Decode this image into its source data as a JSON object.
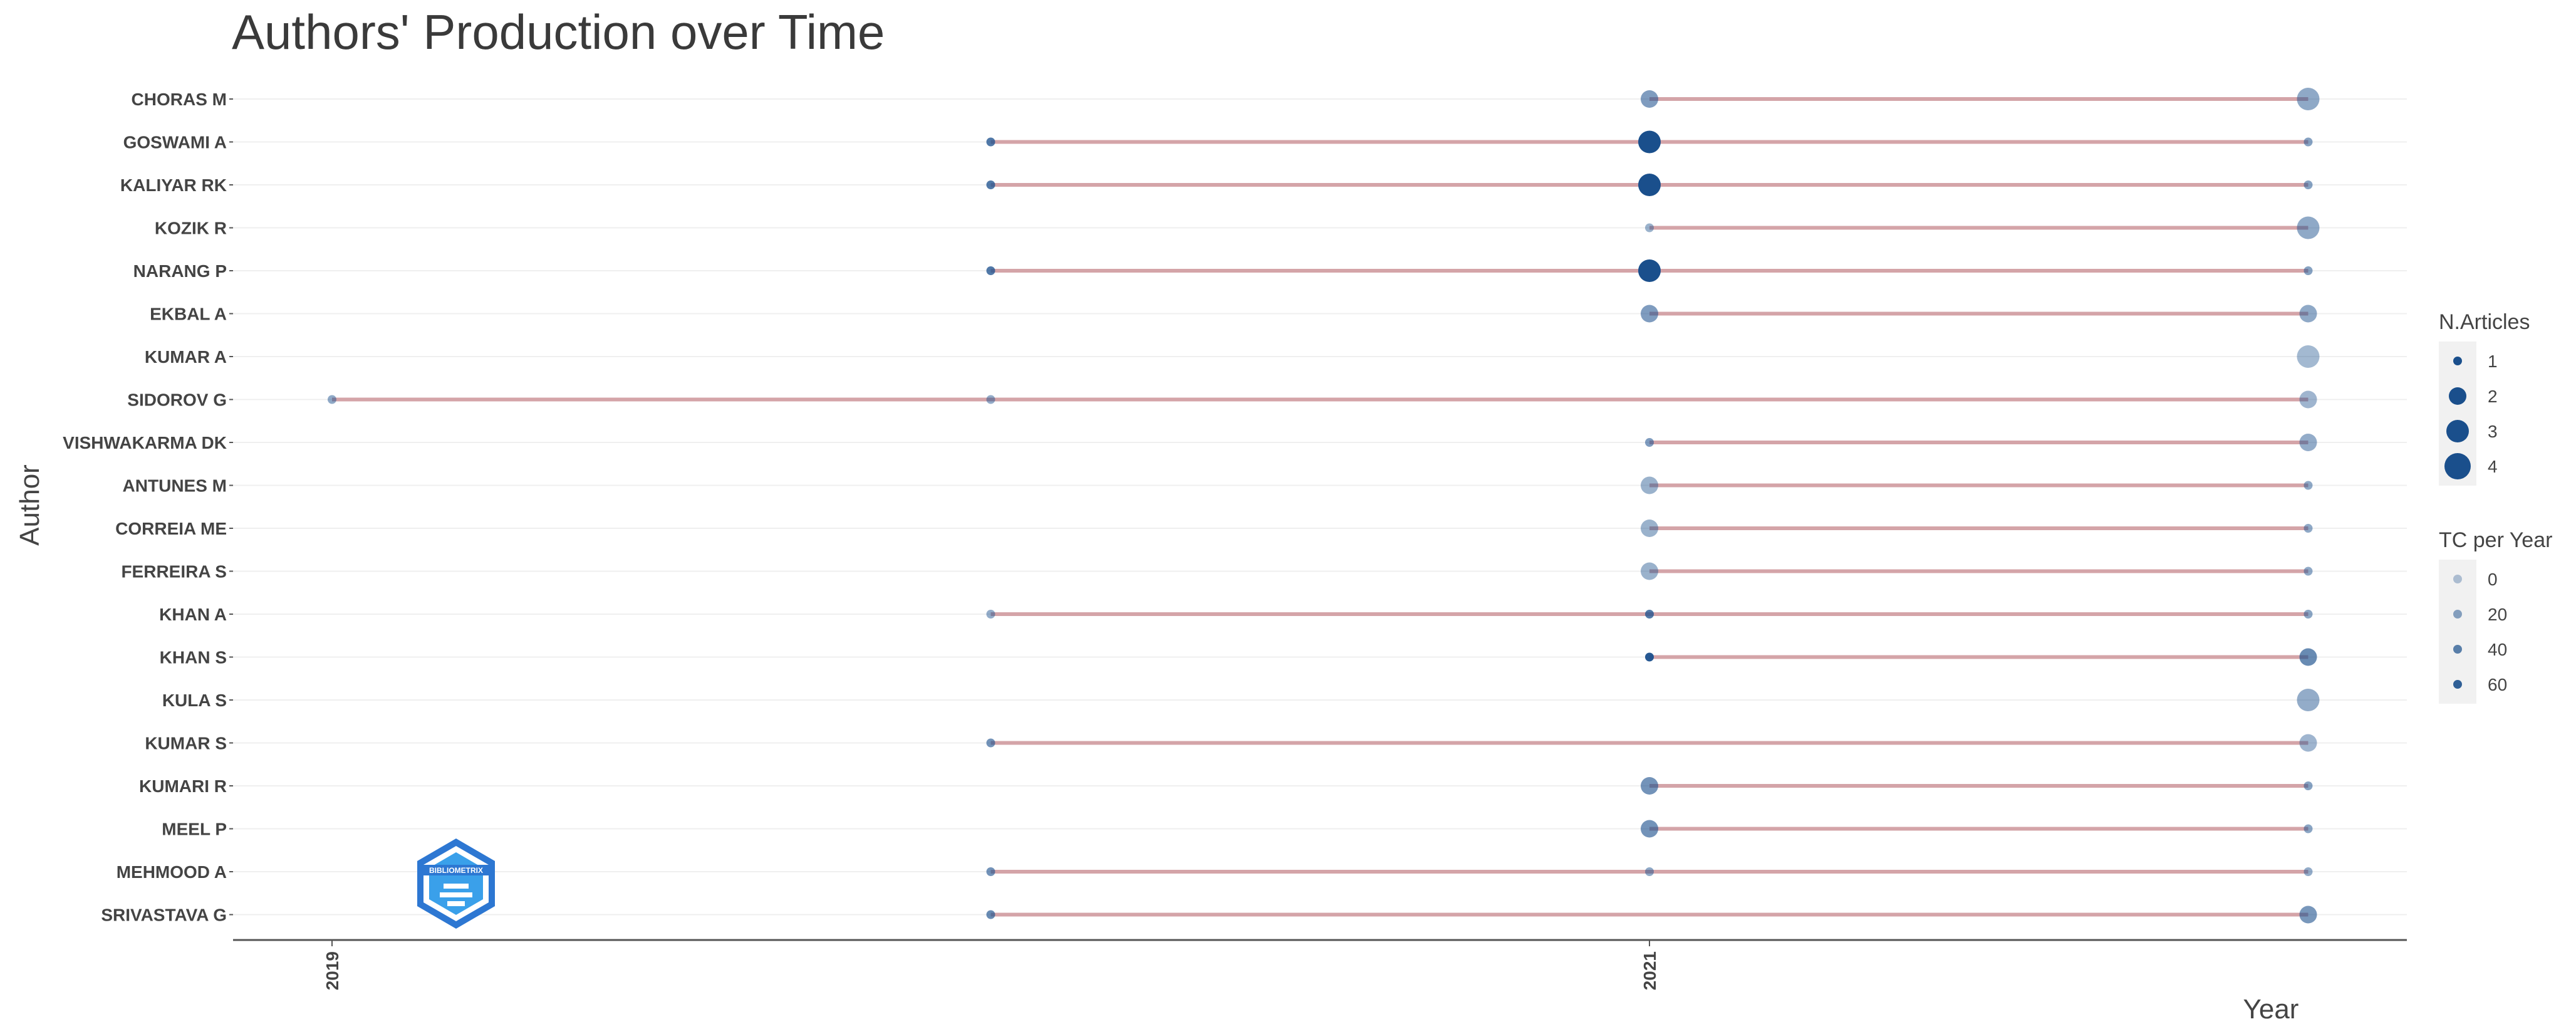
{
  "chart_data": {
    "type": "scatter",
    "title": "Authors' Production over Time",
    "xlabel": "Year",
    "ylabel": "Author",
    "x_ticks": [
      2019,
      2021
    ],
    "xlim": [
      2018.7,
      2022.3
    ],
    "authors": [
      "CHORAS M",
      "GOSWAMI A",
      "KALIYAR RK",
      "KOZIK R",
      "NARANG P",
      "EKBAL A",
      "KUMAR A",
      "SIDOROV G",
      "VISHWAKARMA DK",
      "ANTUNES M",
      "CORREIA ME",
      "FERREIRA S",
      "KHAN A",
      "KHAN S",
      "KULA S",
      "KUMAR S",
      "KUMARI R",
      "MEEL P",
      "MEHMOOD A",
      "SRIVASTAVA G"
    ],
    "timelines": [
      {
        "author": "CHORAS M",
        "start": 2021,
        "end": 2022
      },
      {
        "author": "GOSWAMI A",
        "start": 2020,
        "end": 2022
      },
      {
        "author": "KALIYAR RK",
        "start": 2020,
        "end": 2022
      },
      {
        "author": "KOZIK R",
        "start": 2021,
        "end": 2022
      },
      {
        "author": "NARANG P",
        "start": 2020,
        "end": 2022
      },
      {
        "author": "EKBAL A",
        "start": 2021,
        "end": 2022
      },
      {
        "author": "KUMAR A",
        "start": 2022,
        "end": 2022
      },
      {
        "author": "SIDOROV G",
        "start": 2019,
        "end": 2022
      },
      {
        "author": "VISHWAKARMA DK",
        "start": 2021,
        "end": 2022
      },
      {
        "author": "ANTUNES M",
        "start": 2021,
        "end": 2022
      },
      {
        "author": "CORREIA ME",
        "start": 2021,
        "end": 2022
      },
      {
        "author": "FERREIRA S",
        "start": 2021,
        "end": 2022
      },
      {
        "author": "KHAN A",
        "start": 2020,
        "end": 2022
      },
      {
        "author": "KHAN S",
        "start": 2021,
        "end": 2022
      },
      {
        "author": "KULA S",
        "start": 2022,
        "end": 2022
      },
      {
        "author": "KUMAR S",
        "start": 2020,
        "end": 2022
      },
      {
        "author": "KUMARI R",
        "start": 2021,
        "end": 2022
      },
      {
        "author": "MEEL P",
        "start": 2021,
        "end": 2022
      },
      {
        "author": "MEHMOOD A",
        "start": 2020,
        "end": 2022
      },
      {
        "author": "SRIVASTAVA G",
        "start": 2020,
        "end": 2022
      }
    ],
    "points": [
      {
        "author": "CHORAS M",
        "year": 2021,
        "n_articles": 2,
        "tc_per_year": 25
      },
      {
        "author": "CHORAS M",
        "year": 2022,
        "n_articles": 3,
        "tc_per_year": 18
      },
      {
        "author": "GOSWAMI A",
        "year": 2020,
        "n_articles": 1,
        "tc_per_year": 45
      },
      {
        "author": "GOSWAMI A",
        "year": 2021,
        "n_articles": 3,
        "tc_per_year": 70
      },
      {
        "author": "GOSWAMI A",
        "year": 2022,
        "n_articles": 1,
        "tc_per_year": 22
      },
      {
        "author": "KALIYAR RK",
        "year": 2020,
        "n_articles": 1,
        "tc_per_year": 45
      },
      {
        "author": "KALIYAR RK",
        "year": 2021,
        "n_articles": 3,
        "tc_per_year": 70
      },
      {
        "author": "KALIYAR RK",
        "year": 2022,
        "n_articles": 1,
        "tc_per_year": 22
      },
      {
        "author": "KOZIK R",
        "year": 2021,
        "n_articles": 1,
        "tc_per_year": 12
      },
      {
        "author": "KOZIK R",
        "year": 2022,
        "n_articles": 3,
        "tc_per_year": 18
      },
      {
        "author": "NARANG P",
        "year": 2020,
        "n_articles": 1,
        "tc_per_year": 45
      },
      {
        "author": "NARANG P",
        "year": 2021,
        "n_articles": 3,
        "tc_per_year": 70
      },
      {
        "author": "NARANG P",
        "year": 2022,
        "n_articles": 1,
        "tc_per_year": 22
      },
      {
        "author": "EKBAL A",
        "year": 2021,
        "n_articles": 2,
        "tc_per_year": 25
      },
      {
        "author": "EKBAL A",
        "year": 2022,
        "n_articles": 2,
        "tc_per_year": 18
      },
      {
        "author": "KUMAR A",
        "year": 2022,
        "n_articles": 3,
        "tc_per_year": 8
      },
      {
        "author": "SIDOROV G",
        "year": 2019,
        "n_articles": 1,
        "tc_per_year": 18
      },
      {
        "author": "SIDOROV G",
        "year": 2020,
        "n_articles": 1,
        "tc_per_year": 15
      },
      {
        "author": "SIDOROV G",
        "year": 2022,
        "n_articles": 2,
        "tc_per_year": 10
      },
      {
        "author": "VISHWAKARMA DK",
        "year": 2021,
        "n_articles": 1,
        "tc_per_year": 25
      },
      {
        "author": "VISHWAKARMA DK",
        "year": 2022,
        "n_articles": 2,
        "tc_per_year": 15
      },
      {
        "author": "ANTUNES M",
        "year": 2021,
        "n_articles": 2,
        "tc_per_year": 12
      },
      {
        "author": "ANTUNES M",
        "year": 2022,
        "n_articles": 1,
        "tc_per_year": 18
      },
      {
        "author": "CORREIA ME",
        "year": 2021,
        "n_articles": 2,
        "tc_per_year": 12
      },
      {
        "author": "CORREIA ME",
        "year": 2022,
        "n_articles": 1,
        "tc_per_year": 18
      },
      {
        "author": "FERREIRA S",
        "year": 2021,
        "n_articles": 2,
        "tc_per_year": 12
      },
      {
        "author": "FERREIRA S",
        "year": 2022,
        "n_articles": 1,
        "tc_per_year": 18
      },
      {
        "author": "KHAN A",
        "year": 2020,
        "n_articles": 1,
        "tc_per_year": 15
      },
      {
        "author": "KHAN A",
        "year": 2021,
        "n_articles": 1,
        "tc_per_year": 45
      },
      {
        "author": "KHAN A",
        "year": 2022,
        "n_articles": 1,
        "tc_per_year": 20
      },
      {
        "author": "KHAN S",
        "year": 2021,
        "n_articles": 1,
        "tc_per_year": 65
      },
      {
        "author": "KHAN S",
        "year": 2022,
        "n_articles": 2,
        "tc_per_year": 35
      },
      {
        "author": "KULA S",
        "year": 2022,
        "n_articles": 3,
        "tc_per_year": 15
      },
      {
        "author": "KUMAR S",
        "year": 2020,
        "n_articles": 1,
        "tc_per_year": 30
      },
      {
        "author": "KUMAR S",
        "year": 2022,
        "n_articles": 2,
        "tc_per_year": 10
      },
      {
        "author": "KUMARI R",
        "year": 2021,
        "n_articles": 2,
        "tc_per_year": 30
      },
      {
        "author": "KUMARI R",
        "year": 2022,
        "n_articles": 1,
        "tc_per_year": 22
      },
      {
        "author": "MEEL P",
        "year": 2021,
        "n_articles": 2,
        "tc_per_year": 30
      },
      {
        "author": "MEEL P",
        "year": 2022,
        "n_articles": 1,
        "tc_per_year": 20
      },
      {
        "author": "MEHMOOD A",
        "year": 2020,
        "n_articles": 1,
        "tc_per_year": 30
      },
      {
        "author": "MEHMOOD A",
        "year": 2021,
        "n_articles": 1,
        "tc_per_year": 18
      },
      {
        "author": "MEHMOOD A",
        "year": 2022,
        "n_articles": 1,
        "tc_per_year": 15
      },
      {
        "author": "SRIVASTAVA G",
        "year": 2020,
        "n_articles": 1,
        "tc_per_year": 35
      },
      {
        "author": "SRIVASTAVA G",
        "year": 2022,
        "n_articles": 2,
        "tc_per_year": 28
      }
    ],
    "legend": {
      "placement": "right",
      "size_title": "N.Articles",
      "size_levels": [
        1,
        2,
        3,
        4
      ],
      "color_title": "TC per Year",
      "color_levels": [
        0,
        20,
        40,
        60
      ]
    },
    "colors": {
      "point": "#1a4f8c",
      "segment": "#d4a4a8",
      "axis": "#555555",
      "grid": "#efefef"
    }
  },
  "logo": {
    "text": "BIBLIOMETRIX",
    "color": "#2d77d2"
  }
}
